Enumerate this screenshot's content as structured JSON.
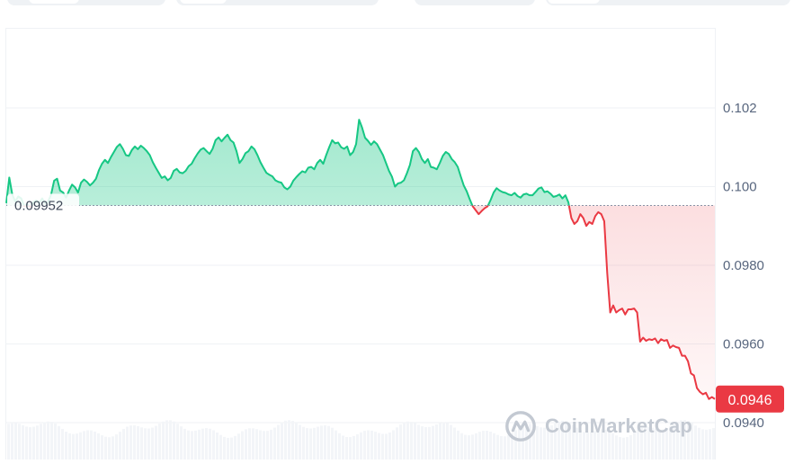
{
  "tabs": [
    {
      "name": "tab-1"
    },
    {
      "name": "tab-2"
    },
    {
      "name": "tab-3"
    },
    {
      "name": "tab-4"
    }
  ],
  "chart_data": {
    "type": "line",
    "xlabel": "",
    "ylabel": "",
    "ylim": [
      0.094,
      0.104
    ],
    "y_ticks": [
      "0.102",
      "0.100",
      "0.0980",
      "0.0960",
      "0.0940"
    ],
    "y_tick_values": [
      0.102,
      0.1,
      0.098,
      0.096,
      0.094
    ],
    "reference_price": 0.09952,
    "reference_label": "0.09952",
    "current_price": 0.0946,
    "current_label": "0.0946",
    "grid": true,
    "colors": {
      "up": "#16c784",
      "down": "#ea3943",
      "grid": "#eff2f5",
      "axis_text": "#58667e"
    },
    "series": [
      {
        "values": [
          0.09958,
          0.10023,
          0.0998,
          0.09962,
          0.09975,
          0.0997,
          0.0995,
          0.09955,
          0.09948,
          0.0996,
          0.09965,
          0.09958,
          0.0997,
          0.09958,
          0.09962,
          0.0998,
          0.10015,
          0.1002,
          0.0999,
          0.09985,
          0.09972,
          0.0999,
          0.10005,
          0.09998,
          0.09985,
          0.1001,
          0.10018,
          0.10012,
          0.10003,
          0.1001,
          0.1002,
          0.10042,
          0.10058,
          0.10068,
          0.1006,
          0.10075,
          0.10088,
          0.10101,
          0.10108,
          0.10096,
          0.1008,
          0.10078,
          0.10093,
          0.10102,
          0.10095,
          0.10104,
          0.10098,
          0.1009,
          0.1008,
          0.10062,
          0.10048,
          0.10035,
          0.10022,
          0.10026,
          0.10016,
          0.10022,
          0.1004,
          0.10045,
          0.10036,
          0.10034,
          0.1004,
          0.10052,
          0.10058,
          0.10072,
          0.10084,
          0.10094,
          0.10098,
          0.1009,
          0.10083,
          0.10096,
          0.10118,
          0.10125,
          0.10115,
          0.10124,
          0.10132,
          0.10118,
          0.10112,
          0.1009,
          0.1006,
          0.1007,
          0.10085,
          0.1009,
          0.10102,
          0.10095,
          0.1008,
          0.10062,
          0.10048,
          0.10035,
          0.1003,
          0.10026,
          0.10016,
          0.10012,
          0.1001,
          0.09998,
          0.09993,
          0.1,
          0.10015,
          0.10024,
          0.10032,
          0.10039,
          0.10036,
          0.10048,
          0.1005,
          0.10044,
          0.1006,
          0.10068,
          0.10058,
          0.1008,
          0.101,
          0.10118,
          0.1011,
          0.10112,
          0.101,
          0.10096,
          0.10102,
          0.1008,
          0.10088,
          0.10108,
          0.1017,
          0.1015,
          0.10124,
          0.10116,
          0.10106,
          0.10115,
          0.10108,
          0.10094,
          0.1008,
          0.1006,
          0.1004,
          0.10025,
          0.1,
          0.10008,
          0.1001,
          0.10016,
          0.10034,
          0.10055,
          0.1009,
          0.10098,
          0.10088,
          0.1007,
          0.1006,
          0.1007,
          0.1005,
          0.10048,
          0.10044,
          0.1006,
          0.10078,
          0.10088,
          0.10083,
          0.1007,
          0.10062,
          0.1005,
          0.10026,
          0.10003,
          0.09988,
          0.09968,
          0.0995,
          0.0994,
          0.0993,
          0.09938,
          0.09945,
          0.0995,
          0.09966,
          0.09985,
          0.09996,
          0.0999,
          0.09986,
          0.09984,
          0.0998,
          0.09978,
          0.09984,
          0.09976,
          0.09972,
          0.0998,
          0.09982,
          0.09978,
          0.09978,
          0.09986,
          0.09995,
          0.09998,
          0.09986,
          0.09988,
          0.09982,
          0.09974,
          0.09976,
          0.0998,
          0.0997,
          0.09978,
          0.0996,
          0.0992,
          0.09905,
          0.09912,
          0.0993,
          0.0992,
          0.099,
          0.0991,
          0.09905,
          0.09925,
          0.09935,
          0.0993,
          0.09912,
          0.0978,
          0.0968,
          0.09698,
          0.0968,
          0.09686,
          0.0969,
          0.09675,
          0.09688,
          0.09688,
          0.0969,
          0.0968,
          0.09606,
          0.09616,
          0.09608,
          0.09612,
          0.0961,
          0.09614,
          0.09602,
          0.09612,
          0.09608,
          0.0961,
          0.0959,
          0.09596,
          0.09592,
          0.0959,
          0.0957,
          0.0957,
          0.09556,
          0.09525,
          0.0952,
          0.09488,
          0.09478,
          0.09472,
          0.09476,
          0.0946,
          0.09465,
          0.0946
        ]
      }
    ]
  },
  "watermark": {
    "brand": "CoinMarketCap",
    "icon": "coinmarketcap-logo-icon"
  }
}
